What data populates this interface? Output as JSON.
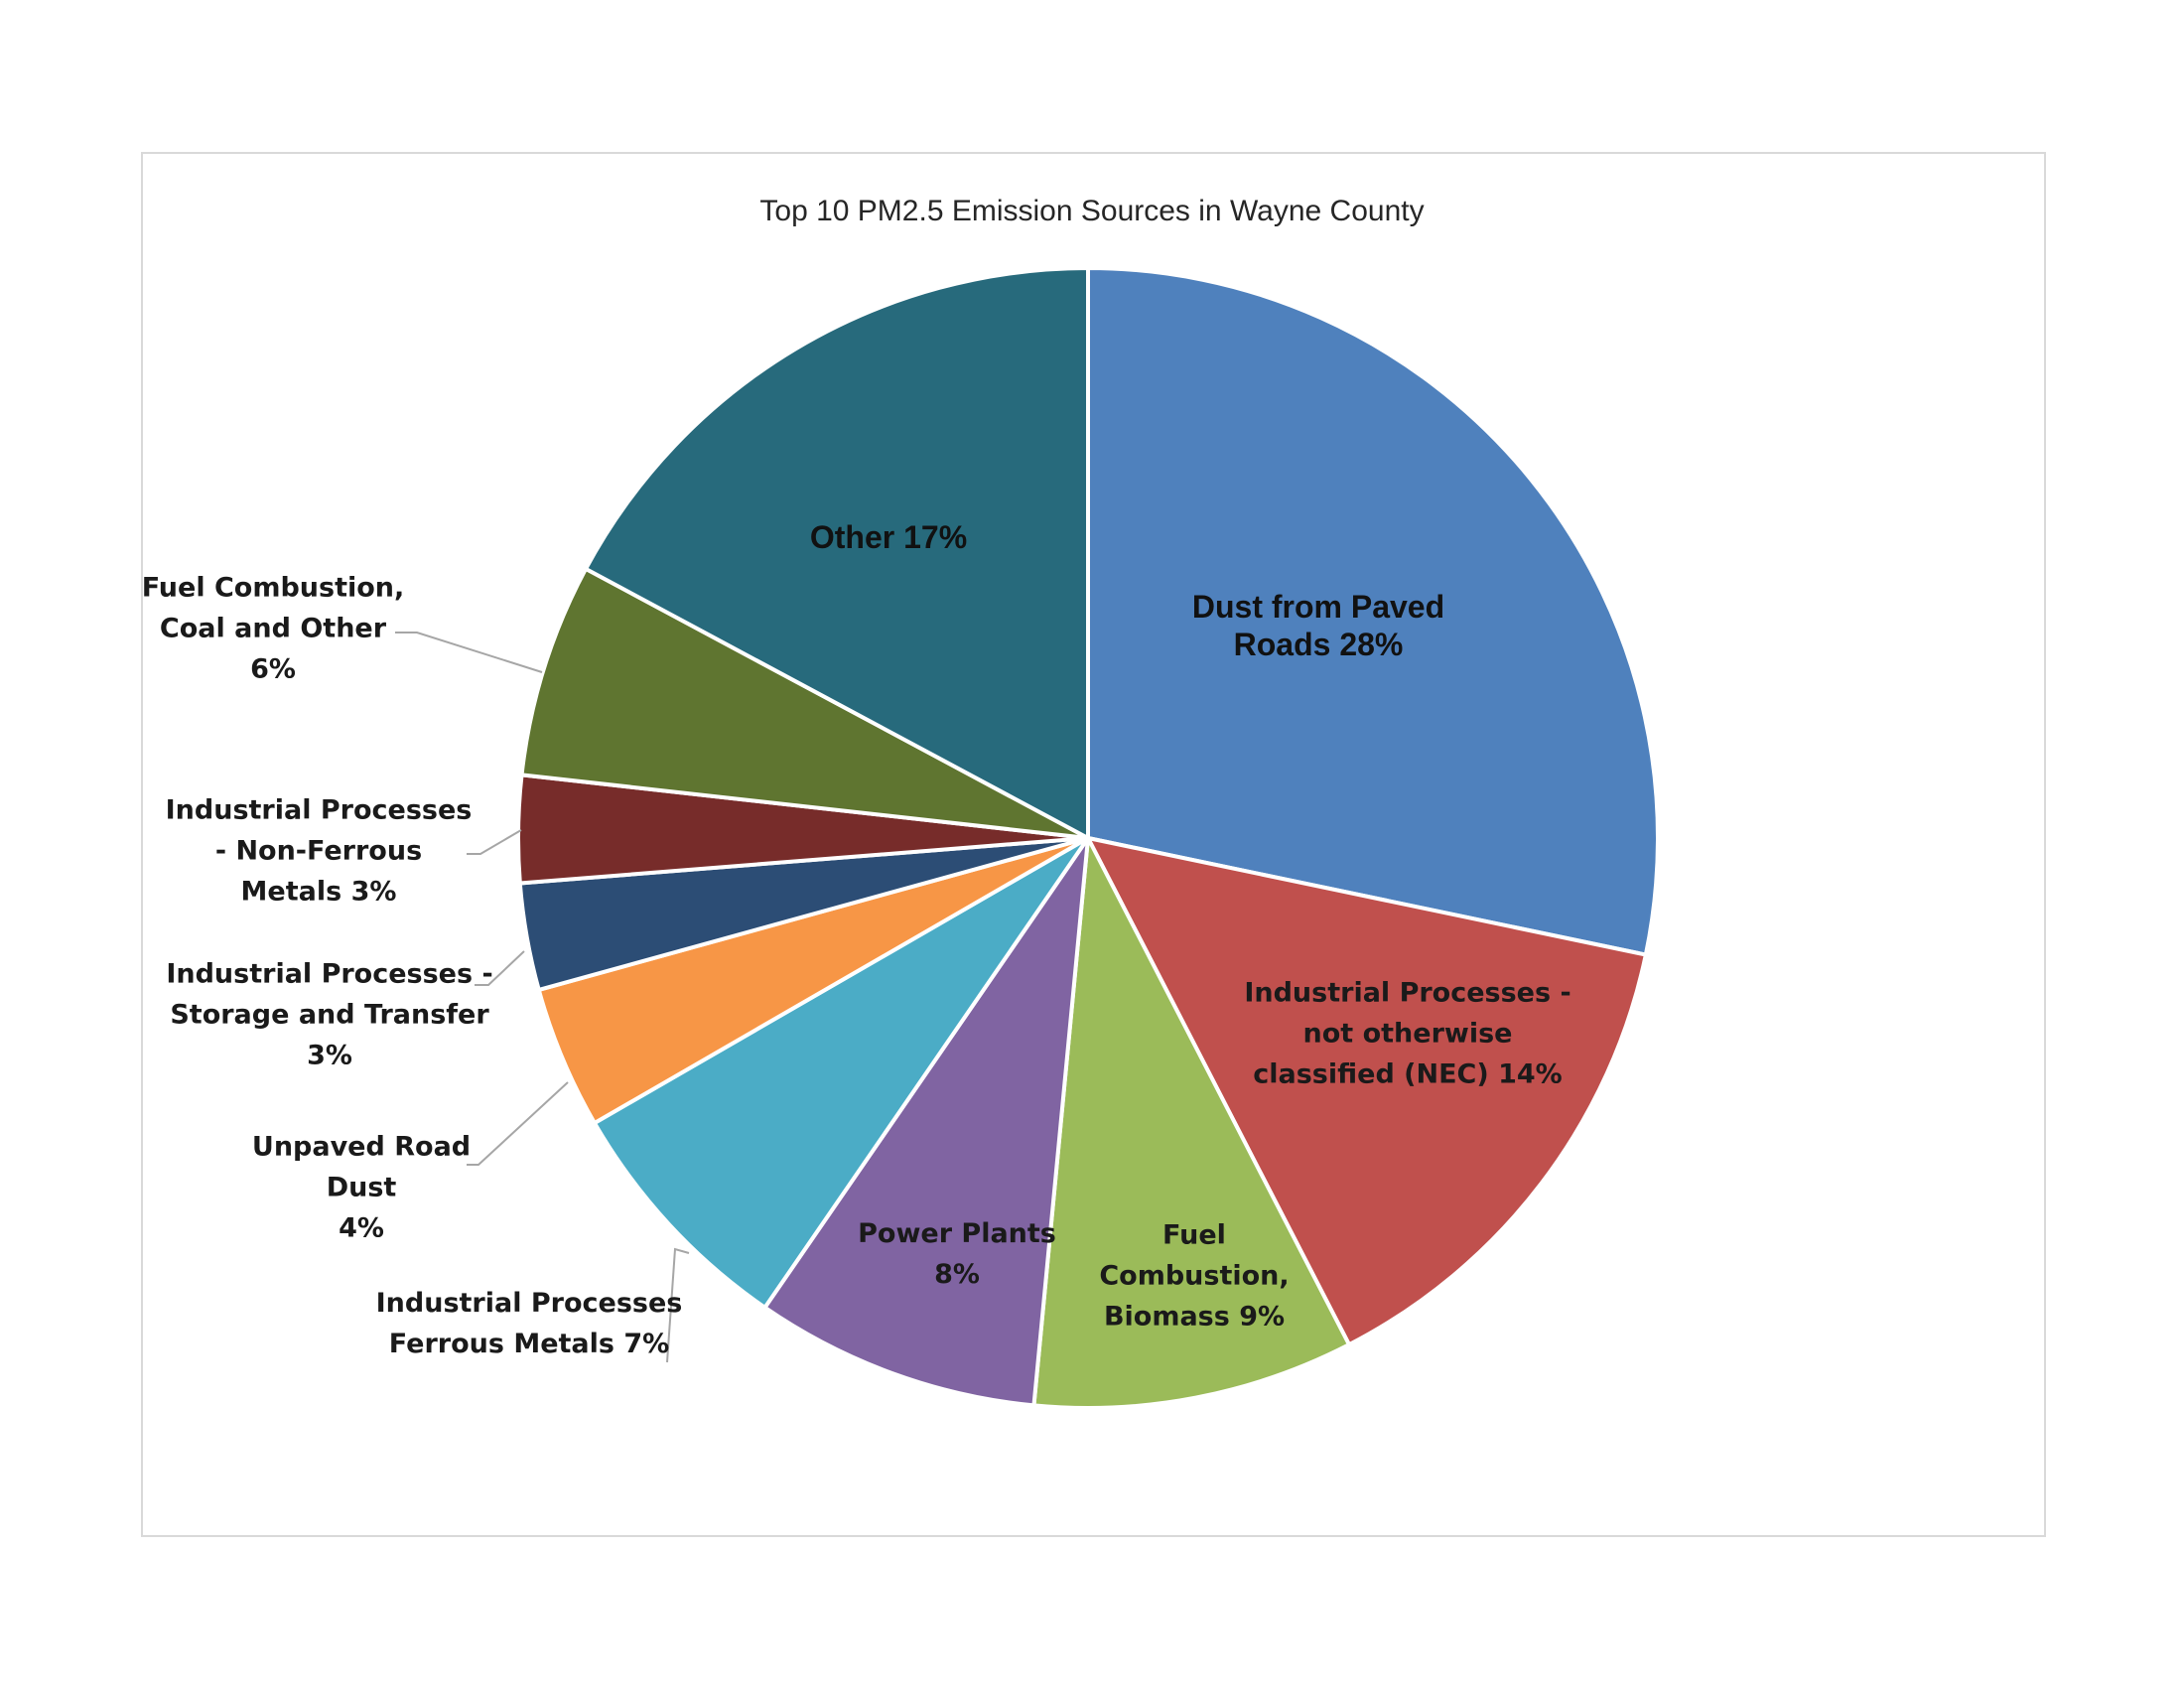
{
  "chart_data": {
    "type": "pie",
    "title": "Top 10 PM2.5 Emission Sources in Wayne County",
    "start_angle_deg": 0,
    "direction": "clockwise",
    "slices": [
      {
        "name": "Dust from Paved Roads",
        "value": 28,
        "label": "Dust from Paved\nRoads 28%",
        "color": "#4F81BD"
      },
      {
        "name": "Industrial Processes - not otherwise classified (NEC)",
        "value": 14,
        "label": "Industrial Processes -\nnot otherwise\nclassified (NEC) 14%",
        "color": "#C0504D"
      },
      {
        "name": "Fuel Combustion, Biomass",
        "value": 9,
        "label": "Fuel\nCombustion,\nBiomass 9%",
        "color": "#9BBB59"
      },
      {
        "name": "Power Plants",
        "value": 8,
        "label": "Power Plants\n8%",
        "color": "#8064A2"
      },
      {
        "name": "Industrial Processes Ferrous Metals",
        "value": 7,
        "label": "Industrial Processes\nFerrous Metals 7%",
        "color": "#4BACC6"
      },
      {
        "name": "Unpaved Road Dust",
        "value": 4,
        "label": "Unpaved Road\nDust\n4%",
        "color": "#F79646"
      },
      {
        "name": "Industrial Processes - Storage and Transfer",
        "value": 3,
        "label": "Industrial Processes -\nStorage and Transfer\n3%",
        "color": "#2C4D75"
      },
      {
        "name": "Industrial Processes - Non-Ferrous Metals",
        "value": 3,
        "label": "Industrial Processes\n- Non-Ferrous\nMetals 3%",
        "color": "#772C2A"
      },
      {
        "name": "Fuel Combustion, Coal and Other",
        "value": 6,
        "label": "Fuel Combustion,\nCoal and Other\n6%",
        "color": "#5F7530"
      },
      {
        "name": "Other",
        "value": 17,
        "label": "Other 17%",
        "color": "#276A7C"
      }
    ]
  }
}
